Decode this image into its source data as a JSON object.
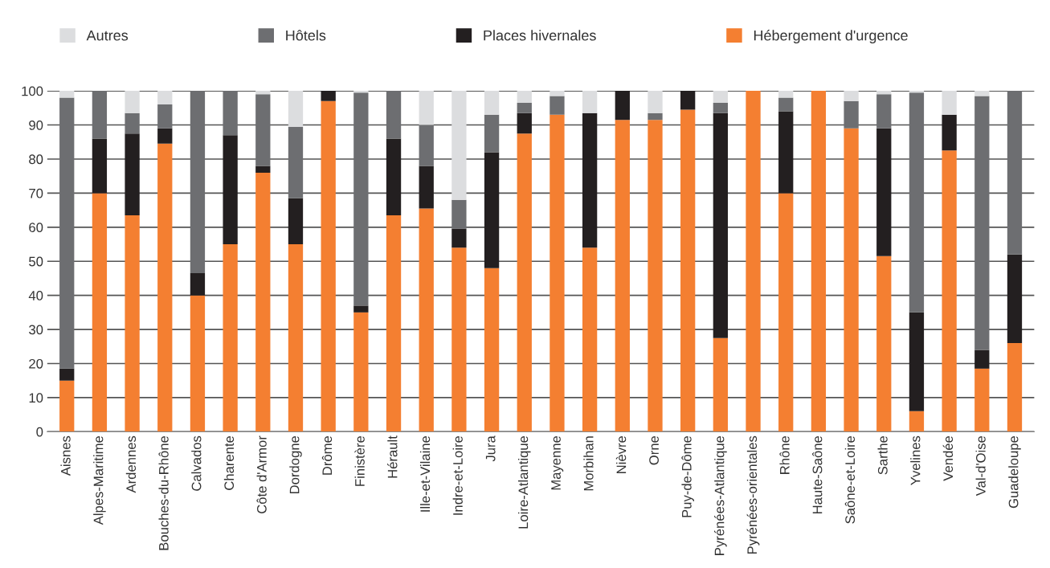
{
  "chart_data": {
    "type": "bar",
    "stacked": true,
    "categories": [
      "Aisnes",
      "Alpes-Maritime",
      "Ardennes",
      "Bouches-du-Rhône",
      "Calvados",
      "Charente",
      "Côte d'Armor",
      "Dordogne",
      "Drôme",
      "Finistère",
      "Hérault",
      "Ille-et-Vilaine",
      "Indre-et-Loire",
      "Jura",
      "Loire-Atlantique",
      "Mayenne",
      "Morbihan",
      "Nièvre",
      "Orne",
      "Puy-de-Dôme",
      "Pyrénées-Atlantique",
      "Pyrénées-orientales",
      "Rhône",
      "Haute-Saône",
      "Saône-et-Loire",
      "Sarthe",
      "Yvelines",
      "Vendée",
      "Val-d'Oise",
      "Guadeloupe"
    ],
    "series": [
      {
        "name": "Hébergement d'urgence",
        "color": "#f47f31",
        "values": [
          15,
          70,
          63.5,
          84.5,
          40,
          55,
          76,
          55,
          97,
          35,
          63.5,
          65.5,
          54,
          48,
          87.5,
          93,
          54,
          91.5,
          91.5,
          94.5,
          27.5,
          100,
          70,
          100,
          89,
          51.5,
          6,
          82.5,
          18.5,
          26
        ]
      },
      {
        "name": "Places hivernales",
        "color": "#231f20",
        "values": [
          3.5,
          16,
          24,
          4.5,
          6.5,
          32,
          2,
          13.5,
          3,
          2,
          22.5,
          12.5,
          5.5,
          34,
          6,
          0,
          39.5,
          8.5,
          0,
          5.5,
          66,
          0,
          24,
          0,
          0,
          37.5,
          29,
          10.5,
          5.5,
          26
        ]
      },
      {
        "name": "Hôtels",
        "color": "#6d6e71",
        "values": [
          79.5,
          14,
          6,
          7,
          53.5,
          13,
          21,
          21,
          0,
          62.5,
          14,
          12,
          8.5,
          11,
          3,
          5.5,
          0,
          0,
          2,
          0,
          3,
          0,
          4,
          0,
          8,
          10,
          64.5,
          0,
          74.5,
          48
        ]
      },
      {
        "name": "Autres",
        "color": "#dcdddf",
        "values": [
          2,
          0,
          6.5,
          4,
          0,
          0,
          1,
          10.5,
          0,
          0.5,
          0,
          10,
          32,
          7,
          3.5,
          1.5,
          6.5,
          0,
          6.5,
          0,
          3.5,
          0,
          2,
          0,
          3,
          1,
          0.5,
          7,
          1.5,
          0
        ]
      }
    ],
    "ylim": [
      0,
      100
    ],
    "yticks": [
      0,
      10,
      20,
      30,
      40,
      50,
      60,
      70,
      80,
      90,
      100
    ],
    "grid": "y",
    "legend": "top"
  }
}
